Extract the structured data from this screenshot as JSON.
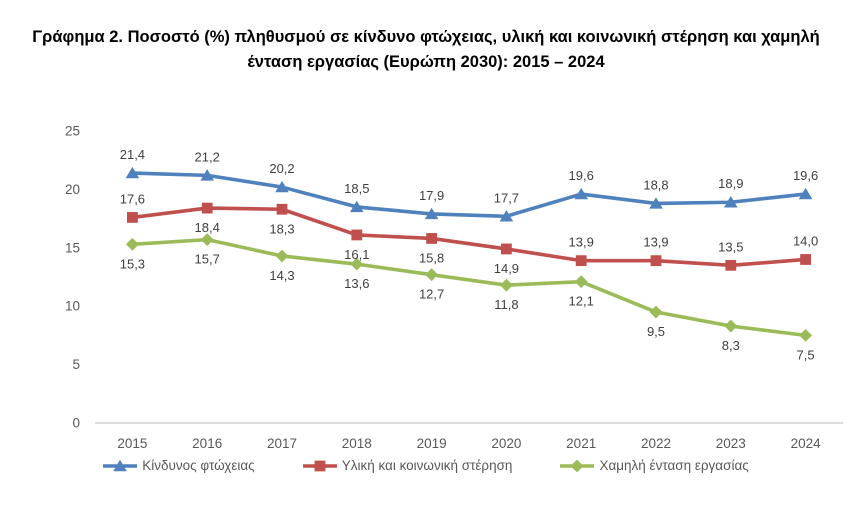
{
  "header": {
    "title": "Γράφημα 2. Ποσοστό (%) πληθυσμού σε κίνδυνο φτώχειας, υλική και κοινωνική στέρηση και χαμηλή ένταση εργασίας (Ευρώπη 2030): 2015 – 2024",
    "title_lines": [
      "Γράφημα 2. Ποσοστό (%) πληθυσμού σε κίνδυνο φτώχειας, υλική και κοινωνική στέρηση και χαμηλή",
      "ένταση εργασίας (Ευρώπη 2030): 2015 – 2024"
    ]
  },
  "chart_data": {
    "type": "line",
    "title": "Γράφημα 2. Ποσοστό (%) πληθυσμού σε κίνδυνο φτώχειας, υλική και κοινωνική στέρηση και χαμηλή ένταση εργασίας (Ευρώπη 2030): 2015 – 2024",
    "xlabel": "",
    "ylabel": "",
    "categories": [
      "2015",
      "2016",
      "2017",
      "2018",
      "2019",
      "2020",
      "2021",
      "2022",
      "2023",
      "2024"
    ],
    "ylim": [
      0,
      25
    ],
    "yticks": [
      0,
      5,
      10,
      15,
      20,
      25
    ],
    "grid": false,
    "legend_position": "bottom",
    "decimal_separator": ",",
    "series": [
      {
        "name": "Κίνδυνος φτώχειας",
        "marker": "triangle",
        "color": "#4F81BD",
        "values": [
          21.4,
          21.2,
          20.2,
          18.5,
          17.9,
          17.7,
          19.6,
          18.8,
          18.9,
          19.6
        ],
        "labels": [
          "21,4",
          "21,2",
          "20,2",
          "18,5",
          "17,9",
          "17,7",
          "19,6",
          "18,8",
          "18,9",
          "19,6"
        ],
        "label_side": [
          "above",
          "above",
          "above",
          "above",
          "above",
          "above",
          "above",
          "above",
          "above",
          "above"
        ]
      },
      {
        "name": "Υλική και κοινωνική στέρηση",
        "marker": "square",
        "color": "#C0504D",
        "values": [
          17.6,
          18.4,
          18.3,
          16.1,
          15.8,
          14.9,
          13.9,
          13.9,
          13.5,
          14.0
        ],
        "labels": [
          "17,6",
          "18,4",
          "18,3",
          "16,1",
          "15,8",
          "14,9",
          "13,9",
          "13,9",
          "13,5",
          "14,0"
        ],
        "label_side": [
          "above",
          "below",
          "below",
          "below",
          "below",
          "below",
          "above",
          "above",
          "above",
          "above"
        ]
      },
      {
        "name": "Χαμηλή ένταση εργασίας",
        "marker": "diamond",
        "color": "#9BBB59",
        "values": [
          15.3,
          15.7,
          14.3,
          13.6,
          12.7,
          11.8,
          12.1,
          9.5,
          8.3,
          7.5
        ],
        "labels": [
          "15,3",
          "15,7",
          "14,3",
          "13,6",
          "12,7",
          "11,8",
          "12,1",
          "9,5",
          "8,3",
          "7,5"
        ],
        "label_side": [
          "below",
          "below",
          "below",
          "below",
          "below",
          "below",
          "below",
          "below",
          "below",
          "below"
        ]
      }
    ]
  },
  "colors": {
    "title": "#000000",
    "axis_text": "#595959",
    "data_label": "#3F3F3F",
    "axis_line": "#C6C6C6",
    "background": "#FFFFFF"
  }
}
